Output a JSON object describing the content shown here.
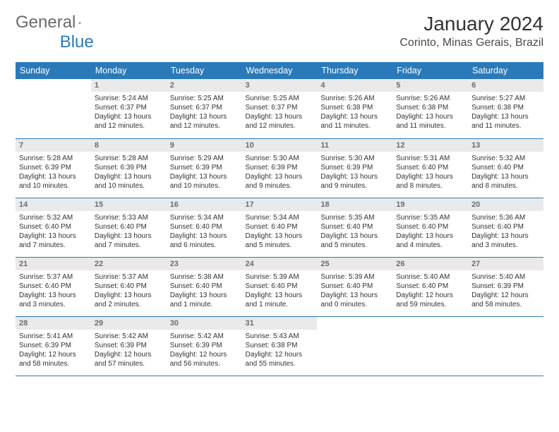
{
  "brand": {
    "text1": "General",
    "text2": "Blue"
  },
  "title": "January 2024",
  "location": "Corinto, Minas Gerais, Brazil",
  "colors": {
    "header_bg": "#2a7ab9",
    "header_text": "#ffffff",
    "daynum_bg": "#eaeaea",
    "daynum_text": "#6d6d6d",
    "divider": "#2a7ab9",
    "body_text": "#333333",
    "page_bg": "#ffffff",
    "brand_gray": "#6b6b6b",
    "brand_blue": "#2a7ab9"
  },
  "fonts": {
    "family": "Arial",
    "month_title_size": 28,
    "location_size": 16,
    "weekday_size": 12.5,
    "daynum_size": 11,
    "body_size": 10
  },
  "weekdays": [
    "Sunday",
    "Monday",
    "Tuesday",
    "Wednesday",
    "Thursday",
    "Friday",
    "Saturday"
  ],
  "first_weekday_index": 1,
  "days": [
    {
      "n": 1,
      "sunrise": "5:24 AM",
      "sunset": "6:37 PM",
      "daylight": "13 hours and 12 minutes."
    },
    {
      "n": 2,
      "sunrise": "5:25 AM",
      "sunset": "6:37 PM",
      "daylight": "13 hours and 12 minutes."
    },
    {
      "n": 3,
      "sunrise": "5:25 AM",
      "sunset": "6:37 PM",
      "daylight": "13 hours and 12 minutes."
    },
    {
      "n": 4,
      "sunrise": "5:26 AM",
      "sunset": "6:38 PM",
      "daylight": "13 hours and 11 minutes."
    },
    {
      "n": 5,
      "sunrise": "5:26 AM",
      "sunset": "6:38 PM",
      "daylight": "13 hours and 11 minutes."
    },
    {
      "n": 6,
      "sunrise": "5:27 AM",
      "sunset": "6:38 PM",
      "daylight": "13 hours and 11 minutes."
    },
    {
      "n": 7,
      "sunrise": "5:28 AM",
      "sunset": "6:39 PM",
      "daylight": "13 hours and 10 minutes."
    },
    {
      "n": 8,
      "sunrise": "5:28 AM",
      "sunset": "6:39 PM",
      "daylight": "13 hours and 10 minutes."
    },
    {
      "n": 9,
      "sunrise": "5:29 AM",
      "sunset": "6:39 PM",
      "daylight": "13 hours and 10 minutes."
    },
    {
      "n": 10,
      "sunrise": "5:30 AM",
      "sunset": "6:39 PM",
      "daylight": "13 hours and 9 minutes."
    },
    {
      "n": 11,
      "sunrise": "5:30 AM",
      "sunset": "6:39 PM",
      "daylight": "13 hours and 9 minutes."
    },
    {
      "n": 12,
      "sunrise": "5:31 AM",
      "sunset": "6:40 PM",
      "daylight": "13 hours and 8 minutes."
    },
    {
      "n": 13,
      "sunrise": "5:32 AM",
      "sunset": "6:40 PM",
      "daylight": "13 hours and 8 minutes."
    },
    {
      "n": 14,
      "sunrise": "5:32 AM",
      "sunset": "6:40 PM",
      "daylight": "13 hours and 7 minutes."
    },
    {
      "n": 15,
      "sunrise": "5:33 AM",
      "sunset": "6:40 PM",
      "daylight": "13 hours and 7 minutes."
    },
    {
      "n": 16,
      "sunrise": "5:34 AM",
      "sunset": "6:40 PM",
      "daylight": "13 hours and 6 minutes."
    },
    {
      "n": 17,
      "sunrise": "5:34 AM",
      "sunset": "6:40 PM",
      "daylight": "13 hours and 5 minutes."
    },
    {
      "n": 18,
      "sunrise": "5:35 AM",
      "sunset": "6:40 PM",
      "daylight": "13 hours and 5 minutes."
    },
    {
      "n": 19,
      "sunrise": "5:35 AM",
      "sunset": "6:40 PM",
      "daylight": "13 hours and 4 minutes."
    },
    {
      "n": 20,
      "sunrise": "5:36 AM",
      "sunset": "6:40 PM",
      "daylight": "13 hours and 3 minutes."
    },
    {
      "n": 21,
      "sunrise": "5:37 AM",
      "sunset": "6:40 PM",
      "daylight": "13 hours and 3 minutes."
    },
    {
      "n": 22,
      "sunrise": "5:37 AM",
      "sunset": "6:40 PM",
      "daylight": "13 hours and 2 minutes."
    },
    {
      "n": 23,
      "sunrise": "5:38 AM",
      "sunset": "6:40 PM",
      "daylight": "13 hours and 1 minute."
    },
    {
      "n": 24,
      "sunrise": "5:39 AM",
      "sunset": "6:40 PM",
      "daylight": "13 hours and 1 minute."
    },
    {
      "n": 25,
      "sunrise": "5:39 AM",
      "sunset": "6:40 PM",
      "daylight": "13 hours and 0 minutes."
    },
    {
      "n": 26,
      "sunrise": "5:40 AM",
      "sunset": "6:40 PM",
      "daylight": "12 hours and 59 minutes."
    },
    {
      "n": 27,
      "sunrise": "5:40 AM",
      "sunset": "6:39 PM",
      "daylight": "12 hours and 58 minutes."
    },
    {
      "n": 28,
      "sunrise": "5:41 AM",
      "sunset": "6:39 PM",
      "daylight": "12 hours and 58 minutes."
    },
    {
      "n": 29,
      "sunrise": "5:42 AM",
      "sunset": "6:39 PM",
      "daylight": "12 hours and 57 minutes."
    },
    {
      "n": 30,
      "sunrise": "5:42 AM",
      "sunset": "6:39 PM",
      "daylight": "12 hours and 56 minutes."
    },
    {
      "n": 31,
      "sunrise": "5:43 AM",
      "sunset": "6:38 PM",
      "daylight": "12 hours and 55 minutes."
    }
  ],
  "labels": {
    "sunrise": "Sunrise:",
    "sunset": "Sunset:",
    "daylight": "Daylight:"
  }
}
